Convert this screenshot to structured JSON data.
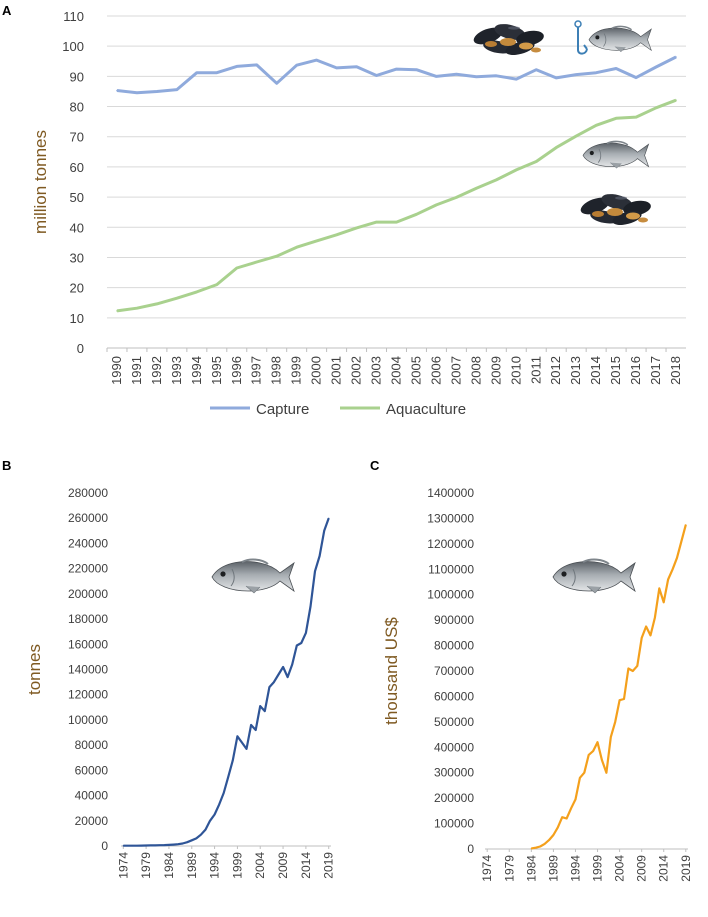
{
  "chart_data": [
    {
      "panel": "A",
      "type": "line",
      "title": "",
      "xlabel": "",
      "ylabel": "million tonnes",
      "ylim": [
        0,
        110
      ],
      "yticks": [
        0,
        10,
        20,
        30,
        40,
        50,
        60,
        70,
        80,
        90,
        100,
        110
      ],
      "grid": true,
      "legend": "bottom",
      "x": [
        1990,
        1991,
        1992,
        1993,
        1994,
        1995,
        1996,
        1997,
        1998,
        1999,
        2000,
        2001,
        2002,
        2003,
        2004,
        2005,
        2006,
        2007,
        2008,
        2009,
        2010,
        2011,
        2012,
        2013,
        2014,
        2015,
        2016,
        2017,
        2018
      ],
      "series": [
        {
          "name": "Capture",
          "color": "#8faadc",
          "values": [
            85.3,
            84.6,
            85.0,
            85.6,
            91.2,
            91.2,
            93.3,
            93.8,
            87.7,
            93.7,
            95.4,
            92.8,
            93.2,
            90.3,
            92.4,
            92.2,
            90.0,
            90.7,
            89.9,
            90.2,
            89.1,
            92.2,
            89.5,
            90.6,
            91.2,
            92.6,
            89.6,
            93.1,
            96.4
          ]
        },
        {
          "name": "Aquaculture",
          "color": "#a9d18e",
          "values": [
            12.3,
            13.2,
            14.6,
            16.5,
            18.6,
            21.0,
            26.5,
            28.5,
            30.4,
            33.4,
            35.5,
            37.5,
            39.8,
            41.7,
            41.7,
            44.3,
            47.4,
            49.9,
            52.9,
            55.7,
            59.0,
            61.8,
            66.4,
            70.2,
            73.8,
            76.1,
            76.5,
            79.6,
            82.1
          ]
        }
      ]
    },
    {
      "panel": "B",
      "type": "line",
      "title": "",
      "xlabel": "",
      "ylabel": "tonnes",
      "ylim": [
        0,
        280000
      ],
      "yticks": [
        0,
        20000,
        40000,
        60000,
        80000,
        100000,
        120000,
        140000,
        160000,
        180000,
        200000,
        220000,
        240000,
        260000,
        280000
      ],
      "xticks": [
        1974,
        1979,
        1984,
        1989,
        1994,
        1999,
        2004,
        2009,
        2014,
        2019
      ],
      "grid": false,
      "series": [
        {
          "name": "tonnes",
          "color": "#2f5597",
          "x": [
            1974,
            1975,
            1976,
            1977,
            1978,
            1979,
            1980,
            1981,
            1982,
            1983,
            1984,
            1985,
            1986,
            1987,
            1988,
            1989,
            1990,
            1991,
            1992,
            1993,
            1994,
            1995,
            1996,
            1997,
            1998,
            1999,
            2000,
            2001,
            2002,
            2003,
            2004,
            2005,
            2006,
            2007,
            2008,
            2009,
            2010,
            2011,
            2012,
            2013,
            2014,
            2015,
            2016,
            2017,
            2018,
            2019
          ],
          "values": [
            200,
            200,
            200,
            250,
            300,
            400,
            450,
            500,
            600,
            700,
            900,
            1100,
            1400,
            2000,
            3000,
            4500,
            6000,
            9000,
            13000,
            20000,
            25000,
            33000,
            42000,
            55000,
            68000,
            87000,
            82000,
            77000,
            96000,
            92000,
            111000,
            107000,
            126000,
            130000,
            136000,
            142000,
            134000,
            144000,
            159000,
            161000,
            169000,
            190000,
            218000,
            230000,
            250000,
            260000
          ]
        }
      ]
    },
    {
      "panel": "C",
      "type": "line",
      "title": "",
      "xlabel": "",
      "ylabel": "thousand US$",
      "ylim": [
        0,
        1400000
      ],
      "yticks": [
        0,
        100000,
        200000,
        300000,
        400000,
        500000,
        600000,
        700000,
        800000,
        900000,
        1000000,
        1100000,
        1200000,
        1300000,
        1400000
      ],
      "xticks": [
        1974,
        1979,
        1984,
        1989,
        1994,
        1999,
        2004,
        2009,
        2014,
        2019
      ],
      "grid": false,
      "series": [
        {
          "name": "thousand US$",
          "color": "#f4a01c",
          "x": [
            1984,
            1985,
            1986,
            1987,
            1988,
            1989,
            1990,
            1991,
            1992,
            1993,
            1994,
            1995,
            1996,
            1997,
            1998,
            1999,
            2000,
            2001,
            2002,
            2003,
            2004,
            2005,
            2006,
            2007,
            2008,
            2009,
            2010,
            2011,
            2012,
            2013,
            2014,
            2015,
            2016,
            2017,
            2018,
            2019
          ],
          "values": [
            2000,
            5000,
            10000,
            20000,
            35000,
            55000,
            85000,
            125000,
            120000,
            160000,
            195000,
            280000,
            300000,
            370000,
            385000,
            420000,
            350000,
            300000,
            440000,
            500000,
            585000,
            590000,
            710000,
            700000,
            720000,
            830000,
            875000,
            840000,
            910000,
            1025000,
            970000,
            1060000,
            1100000,
            1145000,
            1210000,
            1275000
          ]
        }
      ]
    }
  ],
  "panels": {
    "a_label": "A",
    "b_label": "B",
    "c_label": "C"
  },
  "images": {
    "fish": "sea-bream-fish",
    "mussels": "mussel-cluster",
    "hook": "fish-hook"
  },
  "colors": {
    "ylabel": "#7f5a22",
    "axis": "#bfbfbf",
    "grid": "#d9d9d9"
  }
}
